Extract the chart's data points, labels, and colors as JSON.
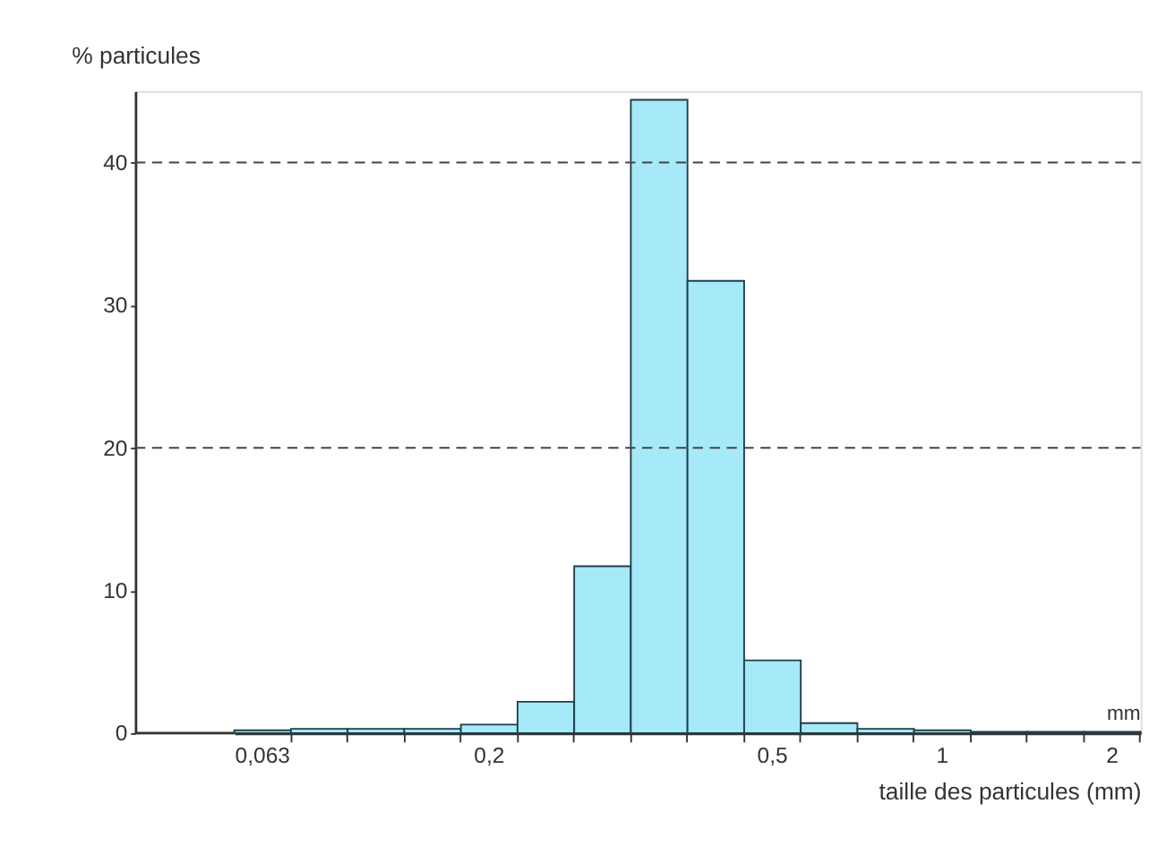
{
  "chart_data": {
    "type": "bar",
    "ylabel": "% particules",
    "xlabel": "taille des particules (mm)",
    "annotations": [
      "mm"
    ],
    "categories": [
      "0,063",
      null,
      null,
      null,
      "0,2",
      null,
      null,
      null,
      null,
      "0,5",
      null,
      null,
      "1",
      null,
      null,
      "2"
    ],
    "values": [
      0.2,
      0.3,
      0.3,
      0.3,
      0.6,
      2.2,
      11.7,
      44.4,
      31.7,
      5.1,
      0.7,
      0.3,
      0.2,
      0.1,
      0.1,
      0.1
    ],
    "color": "#a6e9f8",
    "ylim": [
      0,
      45
    ],
    "yticks": [
      0,
      10,
      20,
      30,
      40
    ],
    "ref_lines": [
      {
        "axis": "y",
        "value": 20,
        "label": null,
        "line_style": "dashed"
      },
      {
        "axis": "y",
        "value": 40,
        "label": null,
        "line_style": "dashed"
      }
    ],
    "grid": false
  }
}
